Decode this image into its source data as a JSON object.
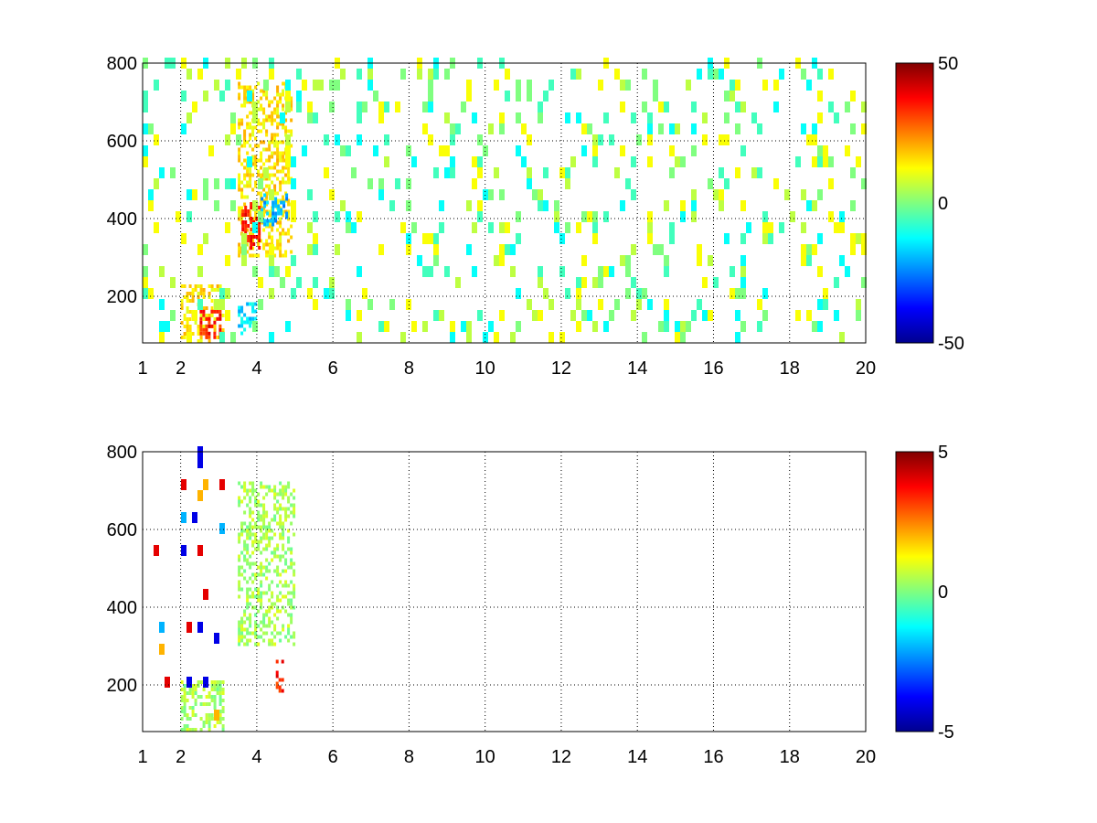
{
  "chart_data": [
    {
      "type": "heatmap",
      "title": "",
      "xlabel": "",
      "ylabel": "",
      "xlim": [
        1,
        20
      ],
      "ylim": [
        80,
        800
      ],
      "x_ticks": [
        "1",
        "2",
        "4",
        "6",
        "8",
        "10",
        "12",
        "14",
        "16",
        "18",
        "20"
      ],
      "x_tick_values": [
        1,
        2,
        4,
        6,
        8,
        10,
        12,
        14,
        16,
        18,
        20
      ],
      "y_ticks": [
        "200",
        "400",
        "600",
        "800"
      ],
      "y_tick_values": [
        200,
        400,
        600,
        800
      ],
      "grid": "dotted",
      "colormap": "jet",
      "clim": [
        -50,
        50
      ],
      "colorbar_ticks": [
        "50",
        "0",
        "-50"
      ],
      "colorbar_tick_values": [
        50,
        0,
        -50
      ],
      "regions": [
        {
          "x": [
            2.0,
            3.1
          ],
          "y": [
            80,
            230
          ],
          "value": 15
        },
        {
          "x": [
            2.5,
            3.1
          ],
          "y": [
            90,
            160
          ],
          "value": 35
        },
        {
          "x": [
            3.5,
            4.9
          ],
          "y": [
            300,
            750
          ],
          "value": 15
        },
        {
          "x": [
            3.6,
            4.1
          ],
          "y": [
            320,
            440
          ],
          "value": 35
        },
        {
          "x": [
            4.1,
            4.8
          ],
          "y": [
            380,
            460
          ],
          "value": -20
        },
        {
          "x": [
            3.5,
            4.0
          ],
          "y": [
            100,
            180
          ],
          "value": -15
        }
      ],
      "noise": {
        "x": [
          1,
          20
        ],
        "density": 0.16,
        "values": [
          -12,
          -6,
          0,
          6,
          12
        ]
      }
    },
    {
      "type": "heatmap",
      "title": "",
      "xlabel": "",
      "ylabel": "",
      "xlim": [
        1,
        20
      ],
      "ylim": [
        80,
        800
      ],
      "x_ticks": [
        "1",
        "2",
        "4",
        "6",
        "8",
        "10",
        "12",
        "14",
        "16",
        "18",
        "20"
      ],
      "x_tick_values": [
        1,
        2,
        4,
        6,
        8,
        10,
        12,
        14,
        16,
        18,
        20
      ],
      "y_ticks": [
        "200",
        "400",
        "600",
        "800"
      ],
      "y_tick_values": [
        200,
        400,
        600,
        800
      ],
      "grid": "dotted",
      "colormap": "jet",
      "clim": [
        -5,
        5
      ],
      "colorbar_ticks": [
        "5",
        "0",
        "-5"
      ],
      "colorbar_tick_values": [
        5,
        0,
        -5
      ],
      "regions": [
        {
          "x": [
            2.0,
            3.1
          ],
          "y": [
            80,
            210
          ],
          "value": 0.4
        },
        {
          "x": [
            3.5,
            5.0
          ],
          "y": [
            300,
            720
          ],
          "value": 0.4
        },
        {
          "x": [
            4.5,
            4.65
          ],
          "y": [
            180,
            260
          ],
          "value": 3.5
        }
      ],
      "noise": {
        "x": [
          1,
          3.1
        ],
        "density": 0.05,
        "values": [
          -4,
          -2,
          2,
          4
        ]
      }
    }
  ]
}
